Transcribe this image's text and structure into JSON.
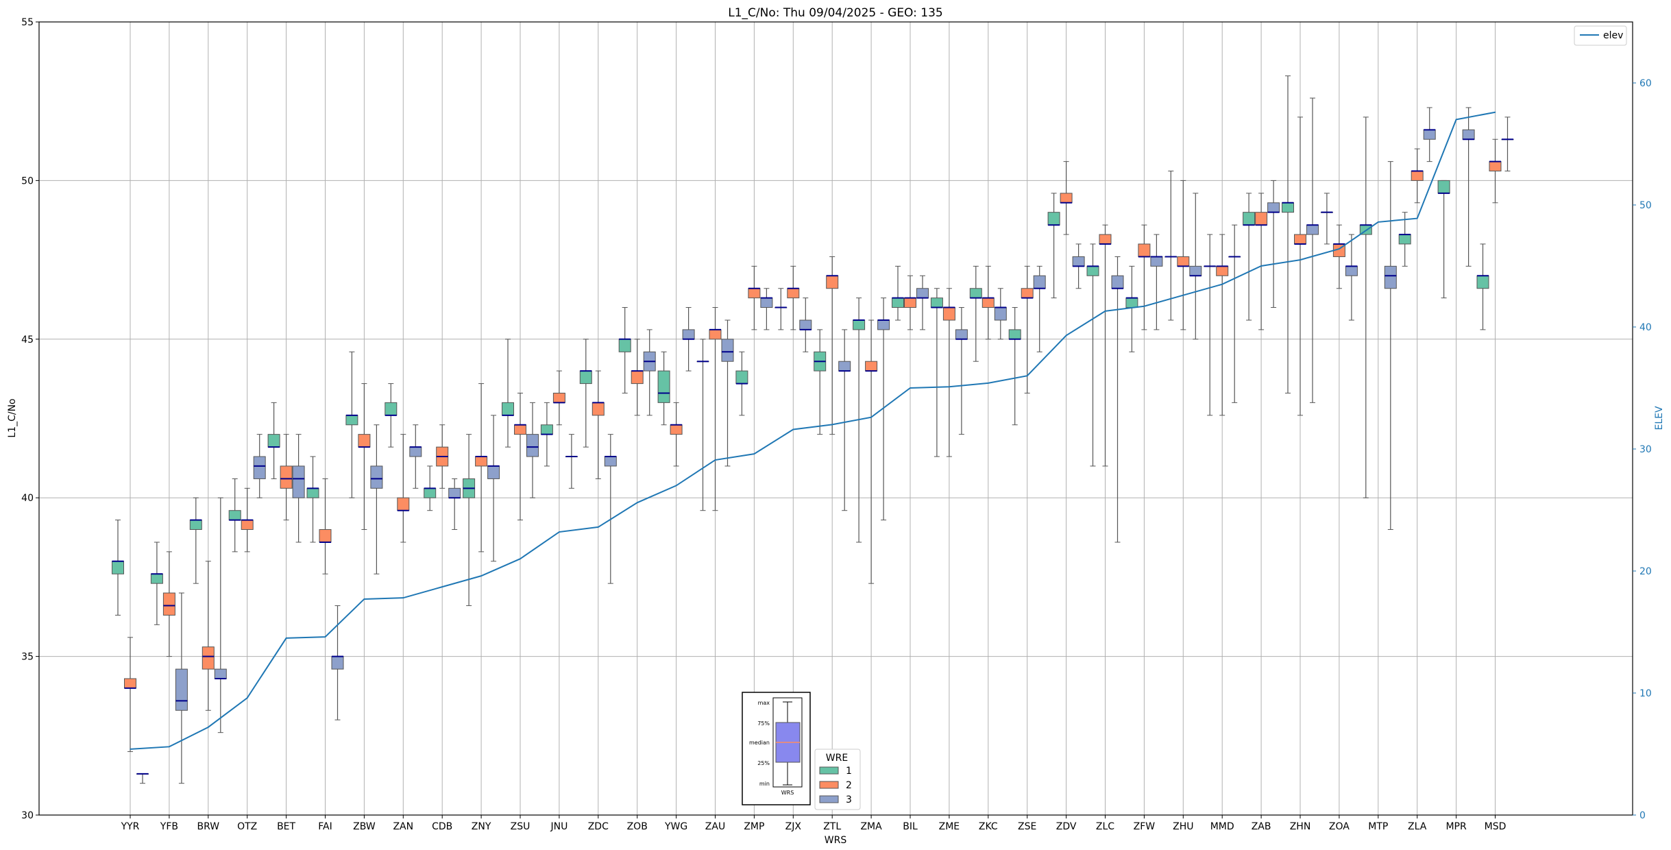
{
  "chart_data": {
    "type": "box",
    "title": "L1_C/No: Thu 09/04/2025 - GEO: 135",
    "xlabel": "WRS",
    "ylabel": "L1_C/No",
    "y2label": "ELEV",
    "ylim": [
      30,
      55
    ],
    "y2lim": [
      0,
      65
    ],
    "yticks": [
      30,
      35,
      40,
      45,
      50,
      55
    ],
    "y2ticks": [
      0,
      10,
      20,
      30,
      40,
      50,
      60
    ],
    "grid": true,
    "categories": [
      "YYR",
      "YFB",
      "BRW",
      "OTZ",
      "BET",
      "FAI",
      "ZBW",
      "ZAN",
      "CDB",
      "ZNY",
      "ZSU",
      "JNU",
      "ZDC",
      "ZOB",
      "YWG",
      "ZAU",
      "ZMP",
      "ZJX",
      "ZTL",
      "ZMA",
      "BIL",
      "ZME",
      "ZKC",
      "ZSE",
      "ZDV",
      "ZLC",
      "ZFW",
      "ZHU",
      "MMD",
      "ZAB",
      "ZHN",
      "ZOA",
      "MTP",
      "ZLA",
      "MPR",
      "MSD"
    ],
    "elev": [
      5.4,
      5.6,
      7.2,
      9.6,
      14.5,
      14.6,
      17.7,
      17.8,
      18.7,
      19.6,
      21.0,
      23.2,
      23.6,
      25.6,
      27.0,
      29.1,
      29.6,
      31.6,
      32.0,
      32.6,
      35.0,
      35.1,
      35.4,
      36.0,
      39.3,
      41.3,
      41.7,
      42.6,
      43.5,
      45.0,
      45.5,
      46.4,
      48.6,
      48.9,
      57.0,
      57.6
    ],
    "elev_legend": "elev",
    "wre_legend_title": "WRE",
    "wre_legend": [
      "1",
      "2",
      "3"
    ],
    "wre_colors": [
      "#66c2a5",
      "#fc8d62",
      "#8da0cb"
    ],
    "elev_color": "#1f77b4",
    "median_color": "#00008b",
    "whisker_color": "#555555",
    "inset": {
      "labels": [
        "max",
        "75%",
        "median",
        "25%",
        "min"
      ],
      "xlabel": "WRS"
    },
    "boxes": [
      {
        "cat": "YYR",
        "wre": 1,
        "min": 36.3,
        "q1": 37.6,
        "median": 38.0,
        "q3": 38.0,
        "max": 39.3
      },
      {
        "cat": "YYR",
        "wre": 2,
        "min": 32.0,
        "q1": 34.0,
        "median": 34.0,
        "q3": 34.3,
        "max": 35.6
      },
      {
        "cat": "YYR",
        "wre": 3,
        "min": 31.0,
        "q1": 31.3,
        "median": 31.3,
        "q3": 31.3,
        "max": 31.3
      },
      {
        "cat": "YFB",
        "wre": 1,
        "min": 36.0,
        "q1": 37.3,
        "median": 37.6,
        "q3": 37.6,
        "max": 38.6
      },
      {
        "cat": "YFB",
        "wre": 2,
        "min": 35.0,
        "q1": 36.3,
        "median": 36.6,
        "q3": 37.0,
        "max": 38.3
      },
      {
        "cat": "YFB",
        "wre": 3,
        "min": 31.0,
        "q1": 33.3,
        "median": 33.6,
        "q3": 34.6,
        "max": 37.0
      },
      {
        "cat": "BRW",
        "wre": 1,
        "min": 37.3,
        "q1": 39.0,
        "median": 39.3,
        "q3": 39.3,
        "max": 40.0
      },
      {
        "cat": "BRW",
        "wre": 2,
        "min": 33.3,
        "q1": 34.6,
        "median": 35.0,
        "q3": 35.3,
        "max": 38.0
      },
      {
        "cat": "BRW",
        "wre": 3,
        "min": 32.6,
        "q1": 34.3,
        "median": 34.3,
        "q3": 34.6,
        "max": 40.0
      },
      {
        "cat": "OTZ",
        "wre": 1,
        "min": 38.3,
        "q1": 39.3,
        "median": 39.3,
        "q3": 39.6,
        "max": 40.6
      },
      {
        "cat": "OTZ",
        "wre": 2,
        "min": 38.3,
        "q1": 39.0,
        "median": 39.3,
        "q3": 39.3,
        "max": 40.3
      },
      {
        "cat": "OTZ",
        "wre": 3,
        "min": 40.0,
        "q1": 40.6,
        "median": 41.0,
        "q3": 41.3,
        "max": 42.0
      },
      {
        "cat": "BET",
        "wre": 1,
        "min": 40.6,
        "q1": 41.6,
        "median": 41.6,
        "q3": 42.0,
        "max": 43.0
      },
      {
        "cat": "BET",
        "wre": 2,
        "min": 39.3,
        "q1": 40.3,
        "median": 40.6,
        "q3": 41.0,
        "max": 42.0
      },
      {
        "cat": "BET",
        "wre": 3,
        "min": 38.6,
        "q1": 40.0,
        "median": 40.6,
        "q3": 41.0,
        "max": 42.0
      },
      {
        "cat": "FAI",
        "wre": 1,
        "min": 38.6,
        "q1": 40.0,
        "median": 40.3,
        "q3": 40.3,
        "max": 41.3
      },
      {
        "cat": "FAI",
        "wre": 2,
        "min": 37.6,
        "q1": 38.6,
        "median": 38.6,
        "q3": 39.0,
        "max": 40.6
      },
      {
        "cat": "FAI",
        "wre": 3,
        "min": 33.0,
        "q1": 34.6,
        "median": 35.0,
        "q3": 35.0,
        "max": 36.6
      },
      {
        "cat": "ZBW",
        "wre": 1,
        "min": 40.0,
        "q1": 42.3,
        "median": 42.6,
        "q3": 42.6,
        "max": 44.6
      },
      {
        "cat": "ZBW",
        "wre": 2,
        "min": 39.0,
        "q1": 41.6,
        "median": 41.6,
        "q3": 42.0,
        "max": 43.6
      },
      {
        "cat": "ZBW",
        "wre": 3,
        "min": 37.6,
        "q1": 40.3,
        "median": 40.6,
        "q3": 41.0,
        "max": 42.3
      },
      {
        "cat": "ZAN",
        "wre": 1,
        "min": 41.6,
        "q1": 42.6,
        "median": 42.6,
        "q3": 43.0,
        "max": 43.6
      },
      {
        "cat": "ZAN",
        "wre": 2,
        "min": 38.6,
        "q1": 39.6,
        "median": 39.6,
        "q3": 40.0,
        "max": 42.0
      },
      {
        "cat": "ZAN",
        "wre": 3,
        "min": 40.3,
        "q1": 41.3,
        "median": 41.6,
        "q3": 41.6,
        "max": 42.3
      },
      {
        "cat": "CDB",
        "wre": 1,
        "min": 39.6,
        "q1": 40.0,
        "median": 40.3,
        "q3": 40.3,
        "max": 41.0
      },
      {
        "cat": "CDB",
        "wre": 2,
        "min": 40.3,
        "q1": 41.0,
        "median": 41.3,
        "q3": 41.6,
        "max": 42.3
      },
      {
        "cat": "CDB",
        "wre": 3,
        "min": 39.0,
        "q1": 40.0,
        "median": 40.0,
        "q3": 40.3,
        "max": 40.6
      },
      {
        "cat": "ZNY",
        "wre": 1,
        "min": 36.6,
        "q1": 40.0,
        "median": 40.3,
        "q3": 40.6,
        "max": 42.0
      },
      {
        "cat": "ZNY",
        "wre": 2,
        "min": 38.3,
        "q1": 41.0,
        "median": 41.3,
        "q3": 41.3,
        "max": 43.6
      },
      {
        "cat": "ZNY",
        "wre": 3,
        "min": 38.0,
        "q1": 40.6,
        "median": 41.0,
        "q3": 41.0,
        "max": 42.6
      },
      {
        "cat": "ZSU",
        "wre": 1,
        "min": 41.6,
        "q1": 42.6,
        "median": 42.6,
        "q3": 43.0,
        "max": 45.0
      },
      {
        "cat": "ZSU",
        "wre": 2,
        "min": 39.3,
        "q1": 42.0,
        "median": 42.3,
        "q3": 42.3,
        "max": 43.3
      },
      {
        "cat": "ZSU",
        "wre": 3,
        "min": 40.0,
        "q1": 41.3,
        "median": 41.6,
        "q3": 42.0,
        "max": 43.0
      },
      {
        "cat": "JNU",
        "wre": 1,
        "min": 41.0,
        "q1": 42.0,
        "median": 42.0,
        "q3": 42.3,
        "max": 43.0
      },
      {
        "cat": "JNU",
        "wre": 2,
        "min": 42.3,
        "q1": 43.0,
        "median": 43.0,
        "q3": 43.3,
        "max": 44.0
      },
      {
        "cat": "JNU",
        "wre": 3,
        "min": 40.3,
        "q1": 41.3,
        "median": 41.3,
        "q3": 41.3,
        "max": 42.0
      },
      {
        "cat": "ZDC",
        "wre": 1,
        "min": 41.6,
        "q1": 43.6,
        "median": 44.0,
        "q3": 44.0,
        "max": 45.0
      },
      {
        "cat": "ZDC",
        "wre": 2,
        "min": 40.6,
        "q1": 42.6,
        "median": 43.0,
        "q3": 43.0,
        "max": 44.0
      },
      {
        "cat": "ZDC",
        "wre": 3,
        "min": 37.3,
        "q1": 41.0,
        "median": 41.3,
        "q3": 41.3,
        "max": 42.0
      },
      {
        "cat": "ZOB",
        "wre": 1,
        "min": 43.3,
        "q1": 44.6,
        "median": 45.0,
        "q3": 45.0,
        "max": 46.0
      },
      {
        "cat": "ZOB",
        "wre": 2,
        "min": 42.6,
        "q1": 43.6,
        "median": 44.0,
        "q3": 44.0,
        "max": 45.0
      },
      {
        "cat": "ZOB",
        "wre": 3,
        "min": 42.6,
        "q1": 44.0,
        "median": 44.3,
        "q3": 44.6,
        "max": 45.3
      },
      {
        "cat": "YWG",
        "wre": 1,
        "min": 42.3,
        "q1": 43.0,
        "median": 43.3,
        "q3": 44.0,
        "max": 44.6
      },
      {
        "cat": "YWG",
        "wre": 2,
        "min": 41.0,
        "q1": 42.0,
        "median": 42.3,
        "q3": 42.3,
        "max": 43.0
      },
      {
        "cat": "YWG",
        "wre": 3,
        "min": 44.0,
        "q1": 45.0,
        "median": 45.0,
        "q3": 45.3,
        "max": 46.0
      },
      {
        "cat": "ZAU",
        "wre": 1,
        "min": 39.6,
        "q1": 44.3,
        "median": 44.3,
        "q3": 44.3,
        "max": 45.0
      },
      {
        "cat": "ZAU",
        "wre": 2,
        "min": 39.6,
        "q1": 45.0,
        "median": 45.3,
        "q3": 45.3,
        "max": 46.0
      },
      {
        "cat": "ZAU",
        "wre": 3,
        "min": 41.0,
        "q1": 44.3,
        "median": 44.6,
        "q3": 45.0,
        "max": 45.6
      },
      {
        "cat": "ZMP",
        "wre": 1,
        "min": 42.6,
        "q1": 43.6,
        "median": 43.6,
        "q3": 44.0,
        "max": 44.6
      },
      {
        "cat": "ZMP",
        "wre": 2,
        "min": 45.3,
        "q1": 46.3,
        "median": 46.6,
        "q3": 46.6,
        "max": 47.3
      },
      {
        "cat": "ZMP",
        "wre": 3,
        "min": 45.3,
        "q1": 46.0,
        "median": 46.3,
        "q3": 46.3,
        "max": 46.6
      },
      {
        "cat": "ZJX",
        "wre": 1,
        "min": 45.3,
        "q1": 46.0,
        "median": 46.0,
        "q3": 46.0,
        "max": 46.6
      },
      {
        "cat": "ZJX",
        "wre": 2,
        "min": 45.3,
        "q1": 46.3,
        "median": 46.6,
        "q3": 46.6,
        "max": 47.3
      },
      {
        "cat": "ZJX",
        "wre": 3,
        "min": 44.6,
        "q1": 45.3,
        "median": 45.3,
        "q3": 45.6,
        "max": 46.3
      },
      {
        "cat": "ZTL",
        "wre": 1,
        "min": 42.0,
        "q1": 44.0,
        "median": 44.3,
        "q3": 44.6,
        "max": 45.3
      },
      {
        "cat": "ZTL",
        "wre": 2,
        "min": 42.0,
        "q1": 46.6,
        "median": 47.0,
        "q3": 47.0,
        "max": 47.6
      },
      {
        "cat": "ZTL",
        "wre": 3,
        "min": 39.6,
        "q1": 44.0,
        "median": 44.0,
        "q3": 44.3,
        "max": 45.3
      },
      {
        "cat": "ZMA",
        "wre": 1,
        "min": 38.6,
        "q1": 45.3,
        "median": 45.6,
        "q3": 45.6,
        "max": 46.3
      },
      {
        "cat": "ZMA",
        "wre": 2,
        "min": 37.3,
        "q1": 44.0,
        "median": 44.0,
        "q3": 44.3,
        "max": 45.6
      },
      {
        "cat": "ZMA",
        "wre": 3,
        "min": 39.3,
        "q1": 45.3,
        "median": 45.6,
        "q3": 45.6,
        "max": 46.3
      },
      {
        "cat": "BIL",
        "wre": 1,
        "min": 45.6,
        "q1": 46.0,
        "median": 46.3,
        "q3": 46.3,
        "max": 47.3
      },
      {
        "cat": "BIL",
        "wre": 2,
        "min": 45.3,
        "q1": 46.0,
        "median": 46.3,
        "q3": 46.3,
        "max": 47.0
      },
      {
        "cat": "BIL",
        "wre": 3,
        "min": 45.3,
        "q1": 46.3,
        "median": 46.3,
        "q3": 46.6,
        "max": 47.0
      },
      {
        "cat": "ZME",
        "wre": 1,
        "min": 41.3,
        "q1": 46.0,
        "median": 46.0,
        "q3": 46.3,
        "max": 46.6
      },
      {
        "cat": "ZME",
        "wre": 2,
        "min": 41.3,
        "q1": 45.6,
        "median": 46.0,
        "q3": 46.0,
        "max": 46.6
      },
      {
        "cat": "ZME",
        "wre": 3,
        "min": 42.0,
        "q1": 45.0,
        "median": 45.0,
        "q3": 45.3,
        "max": 46.0
      },
      {
        "cat": "ZKC",
        "wre": 1,
        "min": 44.3,
        "q1": 46.3,
        "median": 46.3,
        "q3": 46.6,
        "max": 47.3
      },
      {
        "cat": "ZKC",
        "wre": 2,
        "min": 45.0,
        "q1": 46.0,
        "median": 46.3,
        "q3": 46.3,
        "max": 47.3
      },
      {
        "cat": "ZKC",
        "wre": 3,
        "min": 45.0,
        "q1": 45.6,
        "median": 46.0,
        "q3": 46.0,
        "max": 46.6
      },
      {
        "cat": "ZSE",
        "wre": 1,
        "min": 42.3,
        "q1": 45.0,
        "median": 45.0,
        "q3": 45.3,
        "max": 46.0
      },
      {
        "cat": "ZSE",
        "wre": 2,
        "min": 43.3,
        "q1": 46.3,
        "median": 46.3,
        "q3": 46.6,
        "max": 47.3
      },
      {
        "cat": "ZSE",
        "wre": 3,
        "min": 44.6,
        "q1": 46.6,
        "median": 46.6,
        "q3": 47.0,
        "max": 47.3
      },
      {
        "cat": "ZDV",
        "wre": 1,
        "min": 46.3,
        "q1": 48.6,
        "median": 48.6,
        "q3": 49.0,
        "max": 49.6
      },
      {
        "cat": "ZDV",
        "wre": 2,
        "min": 48.3,
        "q1": 49.3,
        "median": 49.3,
        "q3": 49.6,
        "max": 50.6
      },
      {
        "cat": "ZDV",
        "wre": 3,
        "min": 46.6,
        "q1": 47.3,
        "median": 47.3,
        "q3": 47.6,
        "max": 48.0
      },
      {
        "cat": "ZLC",
        "wre": 1,
        "min": 41.0,
        "q1": 47.0,
        "median": 47.3,
        "q3": 47.3,
        "max": 48.0
      },
      {
        "cat": "ZLC",
        "wre": 2,
        "min": 41.0,
        "q1": 48.0,
        "median": 48.0,
        "q3": 48.3,
        "max": 48.6
      },
      {
        "cat": "ZLC",
        "wre": 3,
        "min": 38.6,
        "q1": 46.6,
        "median": 46.6,
        "q3": 47.0,
        "max": 47.6
      },
      {
        "cat": "ZFW",
        "wre": 1,
        "min": 44.6,
        "q1": 46.0,
        "median": 46.3,
        "q3": 46.3,
        "max": 47.3
      },
      {
        "cat": "ZFW",
        "wre": 2,
        "min": 45.3,
        "q1": 47.6,
        "median": 47.6,
        "q3": 48.0,
        "max": 48.6
      },
      {
        "cat": "ZFW",
        "wre": 3,
        "min": 45.3,
        "q1": 47.3,
        "median": 47.6,
        "q3": 47.6,
        "max": 48.3
      },
      {
        "cat": "ZHU",
        "wre": 1,
        "min": 45.6,
        "q1": 47.6,
        "median": 47.6,
        "q3": 47.6,
        "max": 50.3
      },
      {
        "cat": "ZHU",
        "wre": 2,
        "min": 45.3,
        "q1": 47.3,
        "median": 47.3,
        "q3": 47.6,
        "max": 50.0
      },
      {
        "cat": "ZHU",
        "wre": 3,
        "min": 45.0,
        "q1": 47.0,
        "median": 47.0,
        "q3": 47.3,
        "max": 49.6
      },
      {
        "cat": "MMD",
        "wre": 1,
        "min": 42.6,
        "q1": 47.3,
        "median": 47.3,
        "q3": 47.3,
        "max": 48.3
      },
      {
        "cat": "MMD",
        "wre": 2,
        "min": 42.6,
        "q1": 47.0,
        "median": 47.3,
        "q3": 47.3,
        "max": 48.3
      },
      {
        "cat": "MMD",
        "wre": 3,
        "min": 43.0,
        "q1": 47.6,
        "median": 47.6,
        "q3": 47.6,
        "max": 48.6
      },
      {
        "cat": "ZAB",
        "wre": 1,
        "min": 45.6,
        "q1": 48.6,
        "median": 48.6,
        "q3": 49.0,
        "max": 49.6
      },
      {
        "cat": "ZAB",
        "wre": 2,
        "min": 45.3,
        "q1": 48.6,
        "median": 48.6,
        "q3": 49.0,
        "max": 49.6
      },
      {
        "cat": "ZAB",
        "wre": 3,
        "min": 46.0,
        "q1": 49.0,
        "median": 49.0,
        "q3": 49.3,
        "max": 50.0
      },
      {
        "cat": "ZHN",
        "wre": 1,
        "min": 43.3,
        "q1": 49.0,
        "median": 49.3,
        "q3": 49.3,
        "max": 53.3
      },
      {
        "cat": "ZHN",
        "wre": 2,
        "min": 42.6,
        "q1": 48.0,
        "median": 48.0,
        "q3": 48.3,
        "max": 52.0
      },
      {
        "cat": "ZHN",
        "wre": 3,
        "min": 43.0,
        "q1": 48.3,
        "median": 48.6,
        "q3": 48.6,
        "max": 52.6
      },
      {
        "cat": "ZOA",
        "wre": 1,
        "min": 48.0,
        "q1": 49.0,
        "median": 49.0,
        "q3": 49.0,
        "max": 49.6
      },
      {
        "cat": "ZOA",
        "wre": 2,
        "min": 46.6,
        "q1": 47.6,
        "median": 48.0,
        "q3": 48.0,
        "max": 48.6
      },
      {
        "cat": "ZOA",
        "wre": 3,
        "min": 45.6,
        "q1": 47.0,
        "median": 47.3,
        "q3": 47.3,
        "max": 48.3
      },
      {
        "cat": "MTP",
        "wre": 1,
        "min": 40.0,
        "q1": 48.3,
        "median": 48.6,
        "q3": 48.6,
        "max": 52.0
      },
      {
        "cat": "MTP",
        "wre": 3,
        "min": 39.0,
        "q1": 46.6,
        "median": 47.0,
        "q3": 47.3,
        "max": 50.6
      },
      {
        "cat": "ZLA",
        "wre": 1,
        "min": 47.3,
        "q1": 48.0,
        "median": 48.3,
        "q3": 48.3,
        "max": 49.0
      },
      {
        "cat": "ZLA",
        "wre": 2,
        "min": 49.3,
        "q1": 50.0,
        "median": 50.3,
        "q3": 50.3,
        "max": 51.0
      },
      {
        "cat": "ZLA",
        "wre": 3,
        "min": 50.6,
        "q1": 51.3,
        "median": 51.6,
        "q3": 51.6,
        "max": 52.3
      },
      {
        "cat": "MPR",
        "wre": 1,
        "min": 46.3,
        "q1": 49.6,
        "median": 49.6,
        "q3": 50.0,
        "max": 50.0
      },
      {
        "cat": "MPR",
        "wre": 3,
        "min": 47.3,
        "q1": 51.3,
        "median": 51.3,
        "q3": 51.6,
        "max": 52.3
      },
      {
        "cat": "MSD",
        "wre": 1,
        "min": 45.3,
        "q1": 46.6,
        "median": 47.0,
        "q3": 47.0,
        "max": 48.0
      },
      {
        "cat": "MSD",
        "wre": 2,
        "min": 49.3,
        "q1": 50.3,
        "median": 50.6,
        "q3": 50.6,
        "max": 51.3
      },
      {
        "cat": "MSD",
        "wre": 3,
        "min": 50.3,
        "q1": 51.3,
        "median": 51.3,
        "q3": 51.3,
        "max": 52.0
      }
    ]
  }
}
